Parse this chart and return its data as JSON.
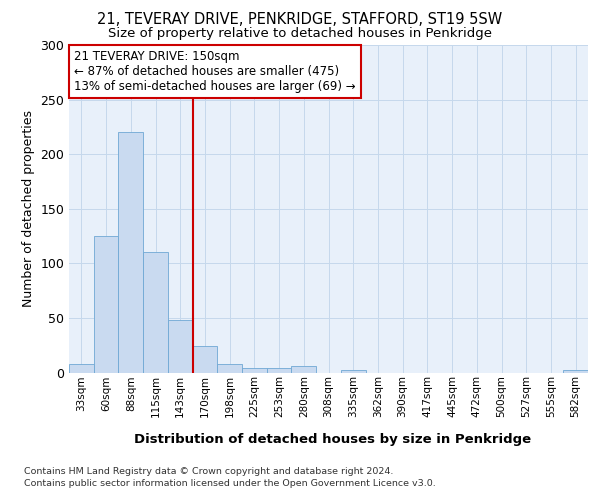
{
  "title_line1": "21, TEVERAY DRIVE, PENKRIDGE, STAFFORD, ST19 5SW",
  "title_line2": "Size of property relative to detached houses in Penkridge",
  "xlabel": "Distribution of detached houses by size in Penkridge",
  "ylabel": "Number of detached properties",
  "categories": [
    "33sqm",
    "60sqm",
    "88sqm",
    "115sqm",
    "143sqm",
    "170sqm",
    "198sqm",
    "225sqm",
    "253sqm",
    "280sqm",
    "308sqm",
    "335sqm",
    "362sqm",
    "390sqm",
    "417sqm",
    "445sqm",
    "472sqm",
    "500sqm",
    "527sqm",
    "555sqm",
    "582sqm"
  ],
  "values": [
    8,
    125,
    220,
    110,
    48,
    24,
    8,
    4,
    4,
    6,
    0,
    2,
    0,
    0,
    0,
    0,
    0,
    0,
    0,
    0,
    2
  ],
  "bar_color": "#c9daf0",
  "bar_edge_color": "#6fa8d4",
  "grid_color": "#c5d8ec",
  "bg_color": "#e8f0fa",
  "annotation_text": "21 TEVERAY DRIVE: 150sqm\n← 87% of detached houses are smaller (475)\n13% of semi-detached houses are larger (69) →",
  "annotation_box_color": "#ffffff",
  "annotation_box_edge": "#cc0000",
  "vline_color": "#cc0000",
  "ylim": [
    0,
    300
  ],
  "yticks": [
    0,
    50,
    100,
    150,
    200,
    250,
    300
  ],
  "footer_line1": "Contains HM Land Registry data © Crown copyright and database right 2024.",
  "footer_line2": "Contains public sector information licensed under the Open Government Licence v3.0."
}
